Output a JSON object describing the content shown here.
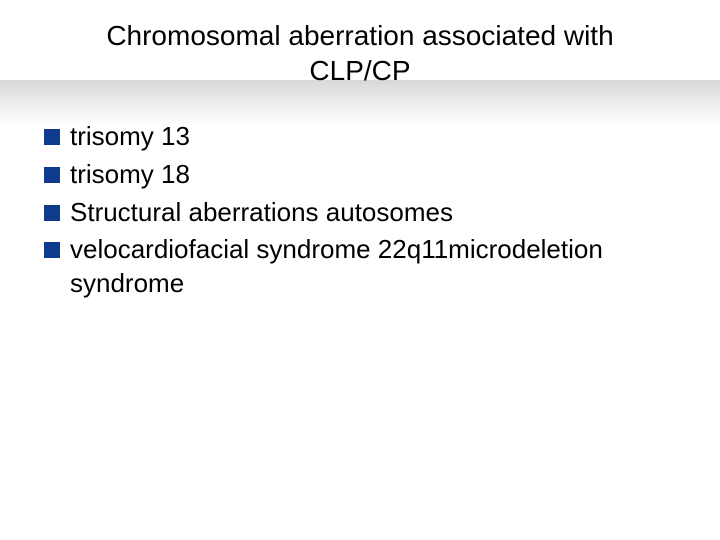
{
  "slide": {
    "title_line1": "Chromosomal aberration associated with",
    "title_line2": "CLP/CP",
    "title_fontsize": 28,
    "title_color": "#000000",
    "bullets": [
      {
        "text": "trisomy 13"
      },
      {
        "text": "trisomy 18"
      },
      {
        "text": "Structural aberrations autosomes"
      },
      {
        "text": "velocardiofacial syndrome 22q11microdeletion syndrome"
      }
    ],
    "bullet_marker_color": "#0f3b8f",
    "bullet_fontsize": 26,
    "bullet_text_color": "#000000",
    "background_color": "#ffffff",
    "gradient_band": {
      "start_color": "#d8d8d8",
      "end_color": "#ffffff"
    }
  }
}
